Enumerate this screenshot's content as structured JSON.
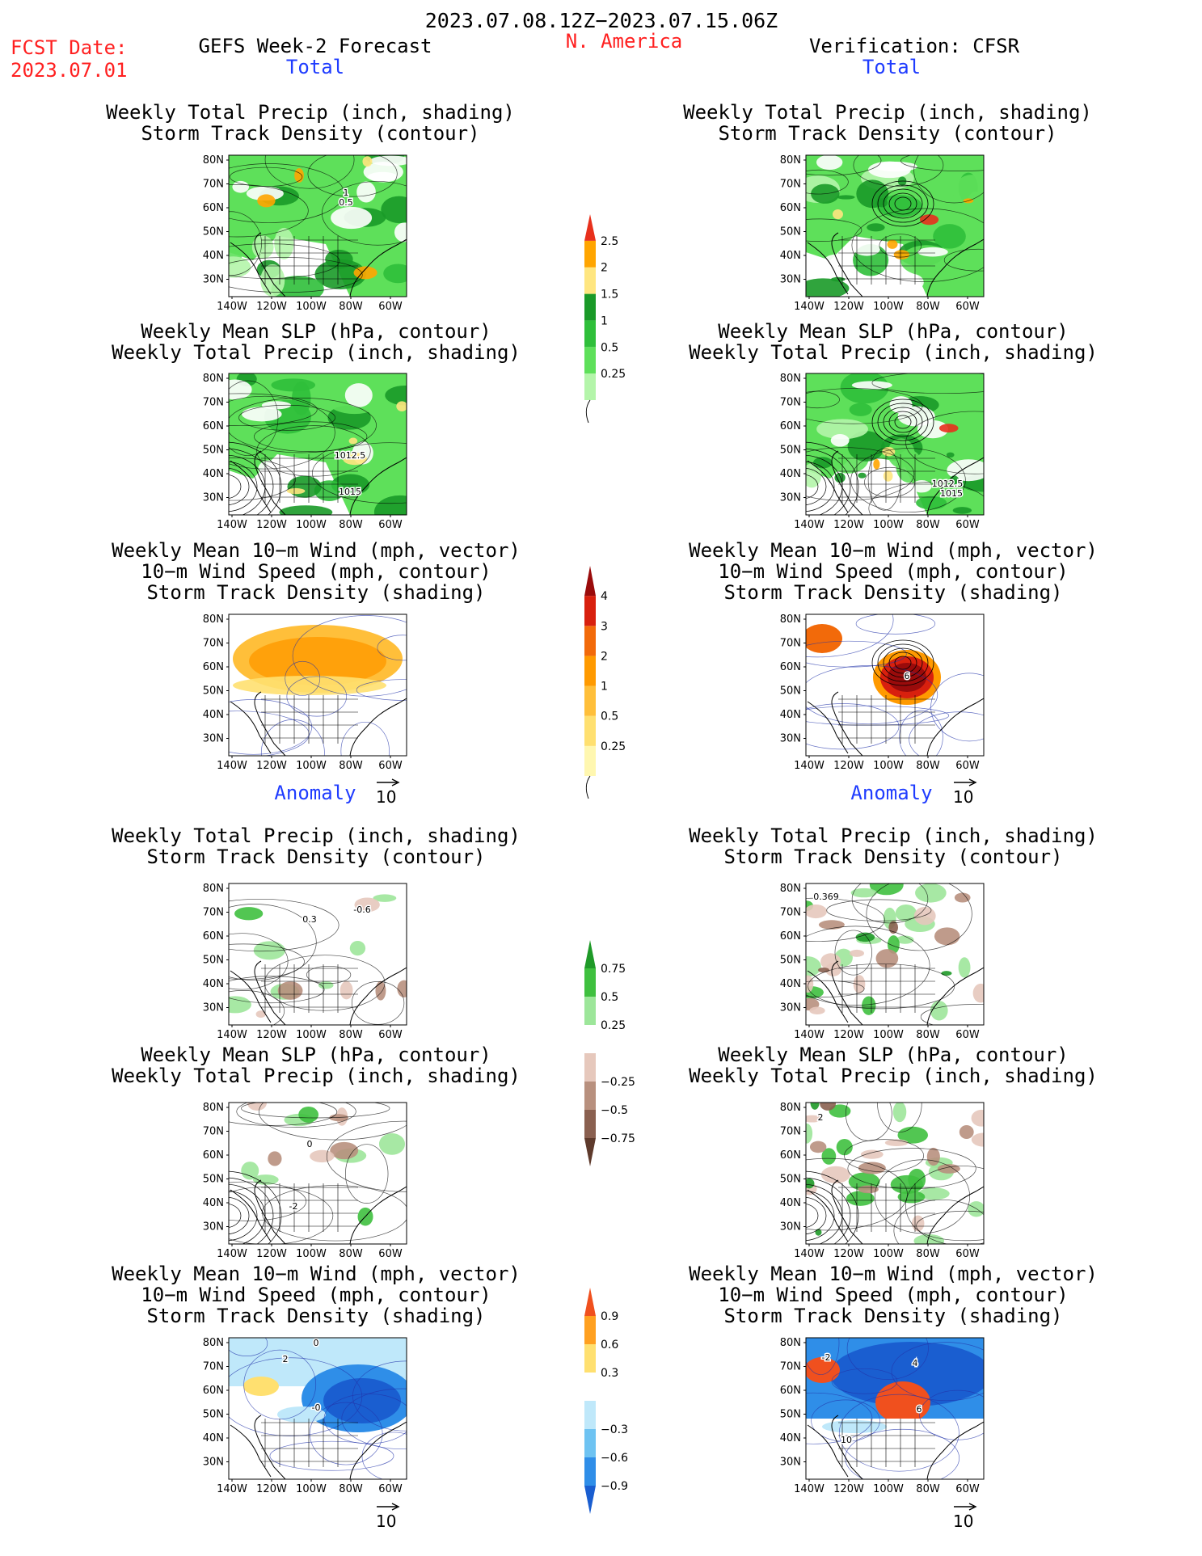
{
  "header": {
    "date_range": "2023.07.08.12Z−2023.07.15.06Z",
    "fcst_label": "FCST Date:",
    "fcst_date": "2023.07.01",
    "forecast_title": "GEFS Week-2 Forecast",
    "region": "N. America",
    "verification": "Verification: CFSR"
  },
  "sections": {
    "total": "Total",
    "anomaly": "Anomaly"
  },
  "titles": {
    "precip_track": [
      "Weekly Total Precip (inch, shading)",
      "Storm Track Density (contour)"
    ],
    "slp_precip": [
      "Weekly Mean SLP (hPa, contour)",
      "Weekly Total Precip (inch, shading)"
    ],
    "wind_track": [
      "Weekly Mean 10−m Wind (mph, vector)",
      "10−m Wind Speed (mph, contour)",
      "Storm Track Density (shading)"
    ]
  },
  "axes": {
    "lat_labels": [
      "80N",
      "70N",
      "60N",
      "50N",
      "40N",
      "30N"
    ],
    "lon_labels": [
      "140W",
      "120W",
      "100W",
      "80W",
      "60W"
    ]
  },
  "vector_ref": "10",
  "contour_labels": {
    "fcst_total_precip": [
      "1",
      "0.5"
    ],
    "fcst_total_slp": [
      "1012.5",
      "1015"
    ],
    "obs_total_slp": [
      "1012.5",
      "1015"
    ],
    "obs_total_wind": [
      "6"
    ],
    "fcst_anom_precip": [
      "0.3",
      "-0.6"
    ],
    "obs_anom_precip": [
      "0.369"
    ],
    "fcst_anom_slp": [
      "0",
      "-2"
    ],
    "obs_anom_slp": [
      "2"
    ],
    "fcst_anom_wind": [
      "0",
      "-0",
      "2"
    ],
    "obs_anom_wind": [
      "-2",
      "4",
      "6",
      "10"
    ]
  },
  "colorbars": {
    "total_precip": {
      "labels": [
        "0.25",
        "0.5",
        "1",
        "1.5",
        "2",
        "2.5"
      ],
      "colors": [
        "#b4f5aa",
        "#5ee05a",
        "#2fbf3a",
        "#1a9a28",
        "#ffe680",
        "#ffa500",
        "#e8301c"
      ]
    },
    "total_track": {
      "labels": [
        "0.25",
        "0.5",
        "1",
        "2",
        "3",
        "4"
      ],
      "colors": [
        "#fff7b0",
        "#ffe070",
        "#ffbf3a",
        "#ff9a00",
        "#f26a0a",
        "#d8200e",
        "#9a0b0b"
      ]
    },
    "anom_precip": {
      "labels": [
        "0.75",
        "0.5",
        "0.25",
        "−0.25",
        "−0.5",
        "−0.75"
      ],
      "colors": [
        "#1f9a28",
        "#3fc03f",
        "#9de69a",
        "#ffffff",
        "#e6c8bc",
        "#b8907e",
        "#8a6050",
        "#5e3a2c"
      ]
    },
    "anom_track": {
      "labels": [
        "0.9",
        "0.6",
        "0.3",
        "−0.3",
        "−0.6",
        "−0.9"
      ],
      "colors": [
        "#f0501e",
        "#ffa020",
        "#ffe070",
        "#ffffff",
        "#bfe8fa",
        "#6ec3f2",
        "#2f8ee8",
        "#1a5ed0"
      ]
    }
  }
}
